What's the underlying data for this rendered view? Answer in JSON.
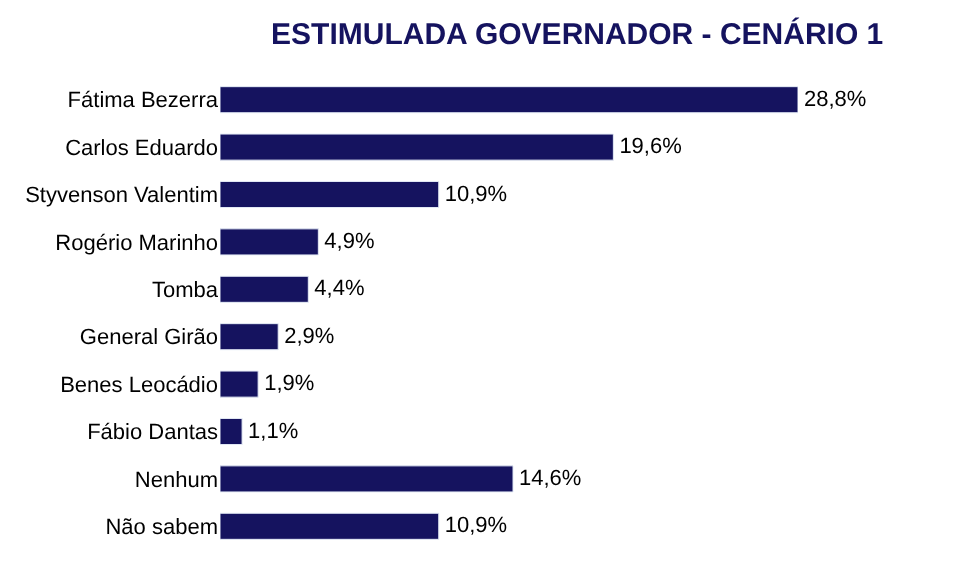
{
  "chart_data": {
    "type": "bar",
    "orientation": "horizontal",
    "title": "ESTIMULADA GOVERNADOR - CENÁRIO 1",
    "categories": [
      "Fátima Bezerra",
      "Carlos Eduardo",
      "Styvenson Valentim",
      "Rogério Marinho",
      "Tomba",
      "General Girão",
      "Benes Leocádio",
      "Fábio Dantas",
      "Nenhum",
      "Não sabem"
    ],
    "values": [
      28.8,
      19.6,
      10.9,
      4.9,
      4.4,
      2.9,
      1.9,
      1.1,
      14.6,
      10.9
    ],
    "value_labels": [
      "28,8%",
      "19,6%",
      "10,9%",
      "4,9%",
      "4,4%",
      "2,9%",
      "1,9%",
      "1,1%",
      "14,6%",
      "10,9%"
    ],
    "color": "#15135f"
  }
}
